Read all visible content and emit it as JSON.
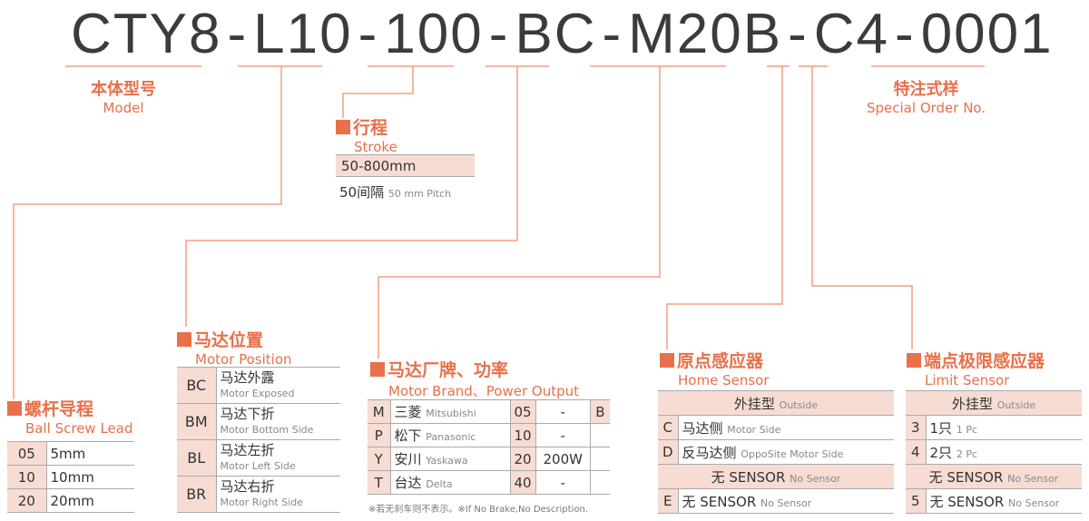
{
  "code": [
    "CTY8",
    "-",
    "L10",
    "-",
    "100",
    "-",
    "BC",
    "-",
    "M20B",
    "-",
    "C4",
    "-",
    "0001"
  ],
  "model": {
    "cn": "本体型号",
    "en": "Model"
  },
  "special": {
    "cn": "特注式样",
    "en": "Special Order No."
  },
  "stroke": {
    "cn": "行程",
    "en": "Stroke",
    "range": "50-800mm",
    "pitch_cn": "50间隔",
    "pitch_en": "50 mm Pitch"
  },
  "lead": {
    "cn": "螺杆导程",
    "en": "Ball Screw Lead",
    "rows": [
      [
        "05",
        "5mm"
      ],
      [
        "10",
        "10mm"
      ],
      [
        "20",
        "20mm"
      ]
    ]
  },
  "position": {
    "cn": "马达位置",
    "en": "Motor Position",
    "rows": [
      [
        "BC",
        "马达外露",
        "Motor Exposed"
      ],
      [
        "BM",
        "马达下折",
        "Motor Bottom Side"
      ],
      [
        "BL",
        "马达左折",
        "Motor Left Side"
      ],
      [
        "BR",
        "马达右折",
        "Motor Right Side"
      ]
    ]
  },
  "brand": {
    "cn": "马达厂牌、功率",
    "en": "Motor Brand、Power Output",
    "brake": "B",
    "note": "※若无刹车则不表示。※If No Brake,No Description.",
    "rows": [
      [
        "M",
        "三菱",
        "Mitsubishi",
        "05",
        "-"
      ],
      [
        "P",
        "松下",
        "Panasonic",
        "10",
        "-"
      ],
      [
        "Y",
        "安川",
        "Yaskawa",
        "20",
        "200W"
      ],
      [
        "T",
        "台达",
        "Delta",
        "40",
        "-"
      ]
    ]
  },
  "home": {
    "cn": "原点感应器",
    "en": "Home Sensor",
    "outside_cn": "外挂型",
    "outside_en": "Outside",
    "rows": [
      [
        "C",
        "马达侧",
        "Motor Side"
      ],
      [
        "D",
        "反马达侧",
        "OppoSite Motor Side"
      ]
    ],
    "none_cn": "无 SENSOR",
    "none_en": "No Sensor",
    "none_code": "E"
  },
  "limit": {
    "cn": "端点极限感应器",
    "en": "Limit Sensor",
    "outside_cn": "外挂型",
    "outside_en": "Outside",
    "rows": [
      [
        "3",
        "1只",
        "1 Pc"
      ],
      [
        "4",
        "2只",
        "2 Pc"
      ]
    ],
    "none_cn": "无 SENSOR",
    "none_en": "No Sensor",
    "none_code": "5"
  },
  "colors": {
    "accent": "#e8704a",
    "line": "#f0a07f",
    "cell": "#f7dcd3"
  }
}
